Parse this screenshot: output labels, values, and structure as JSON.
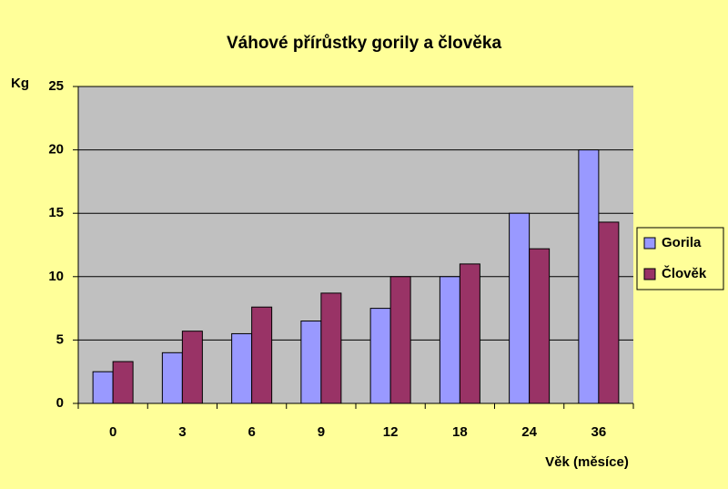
{
  "chart_data": {
    "type": "bar",
    "title": "Váhové přírůstky gorily a člověka",
    "y_label": "Kg",
    "x_label": "Věk (měsíce)",
    "categories": [
      "0",
      "3",
      "6",
      "9",
      "12",
      "18",
      "24",
      "36"
    ],
    "series": [
      {
        "name": "Gorila",
        "color": "#9999ff",
        "values": [
          2.5,
          4,
          5.5,
          6.5,
          7.5,
          10,
          15,
          20
        ]
      },
      {
        "name": "Člověk",
        "color": "#993366",
        "values": [
          3.3,
          5.7,
          7.6,
          8.7,
          10,
          11,
          12.2,
          14.3
        ]
      }
    ],
    "ylim": [
      0,
      25
    ],
    "yticks": [
      0,
      5,
      10,
      15,
      20,
      25
    ],
    "grid": true,
    "legend": "right"
  }
}
